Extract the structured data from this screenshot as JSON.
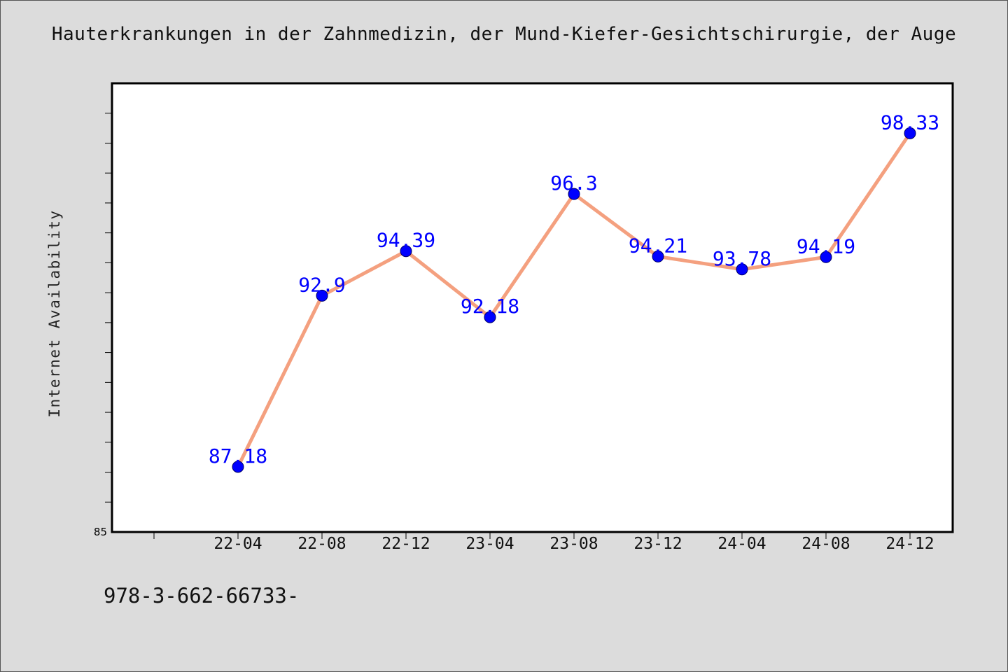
{
  "chart_data": {
    "type": "line",
    "title": "Hauterkrankungen in der Zahnmedizin, der Mund-Kiefer-Gesichtschirurgie, der Auge",
    "xlabel": "",
    "ylabel": "Internet Availability",
    "categories": [
      "22-04",
      "22-08",
      "22-12",
      "23-04",
      "23-08",
      "23-12",
      "24-04",
      "24-08",
      "24-12"
    ],
    "series": [
      {
        "values": [
          87.18,
          92.9,
          94.39,
          92.18,
          96.3,
          94.21,
          93.78,
          94.19,
          98.33
        ],
        "labels": [
          "87.18",
          "92.9",
          "94.39",
          "92.18",
          "96.3",
          "94.21",
          "93.78",
          "94.19",
          "98.33"
        ]
      }
    ],
    "y_tick_labels": [
      "85"
    ],
    "ylim": [
      85,
      100
    ],
    "grid": false,
    "colors": {
      "line": "#f4a07f",
      "marker": "#0000ff",
      "label": "#0000ff"
    }
  },
  "footer": {
    "text": "978-3-662-66733-"
  }
}
